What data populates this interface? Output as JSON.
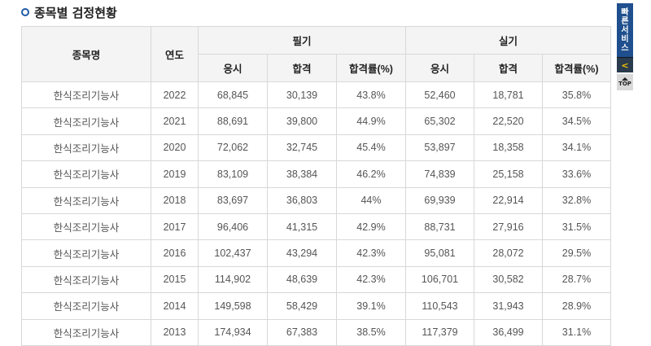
{
  "section_title": "종목별 검정현황",
  "table": {
    "headers": {
      "name": "종목명",
      "year": "연도",
      "written": "필기",
      "practical": "실기",
      "applicants": "응시",
      "passed": "합격",
      "pass_rate": "합격률(%)"
    },
    "rows": [
      [
        "한식조리기능사",
        "2022",
        "68,845",
        "30,139",
        "43.8%",
        "52,460",
        "18,781",
        "35.8%"
      ],
      [
        "한식조리기능사",
        "2021",
        "88,691",
        "39,800",
        "44.9%",
        "65,302",
        "22,520",
        "34.5%"
      ],
      [
        "한식조리기능사",
        "2020",
        "72,062",
        "32,745",
        "45.4%",
        "53,897",
        "18,358",
        "34.1%"
      ],
      [
        "한식조리기능사",
        "2019",
        "83,109",
        "38,384",
        "46.2%",
        "74,839",
        "25,158",
        "33.6%"
      ],
      [
        "한식조리기능사",
        "2018",
        "83,697",
        "36,803",
        "44%",
        "69,939",
        "22,914",
        "32.8%"
      ],
      [
        "한식조리기능사",
        "2017",
        "96,406",
        "41,315",
        "42.9%",
        "88,731",
        "27,916",
        "31.5%"
      ],
      [
        "한식조리기능사",
        "2016",
        "102,437",
        "43,294",
        "42.3%",
        "95,081",
        "28,072",
        "29.5%"
      ],
      [
        "한식조리기능사",
        "2015",
        "114,902",
        "48,639",
        "42.3%",
        "106,701",
        "30,582",
        "28.7%"
      ],
      [
        "한식조리기능사",
        "2014",
        "149,598",
        "58,429",
        "39.1%",
        "110,543",
        "31,943",
        "28.9%"
      ],
      [
        "한식조리기능사",
        "2013",
        "174,934",
        "67,383",
        "38.5%",
        "117,379",
        "36,499",
        "31.1%"
      ]
    ]
  },
  "quick_menu": {
    "chars": [
      "빠",
      "른",
      "서",
      "비",
      "스"
    ],
    "arrow": "<",
    "top_label": "TOP"
  },
  "colors": {
    "accent": "#1f5aa6",
    "quick_bg": "#1f4f8e",
    "header_bg": "#f4f4f4",
    "border": "#d8d8d8"
  }
}
